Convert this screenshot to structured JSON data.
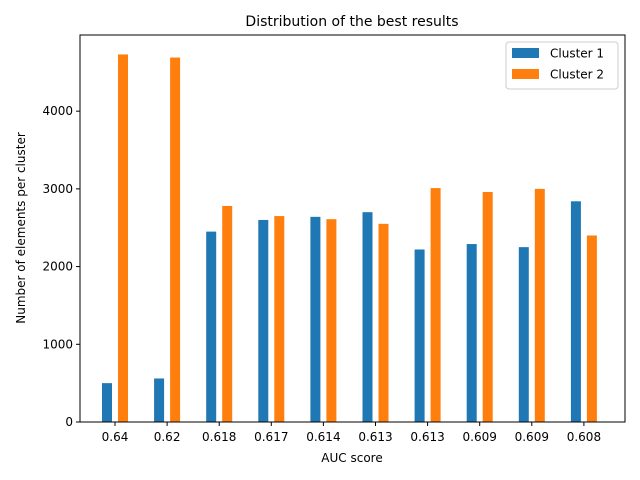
{
  "chart_data": {
    "type": "bar",
    "title": "Distribution of the best results",
    "xlabel": "AUC score",
    "ylabel": "Number of elements per cluster",
    "categories": [
      "0.64",
      "0.62",
      "0.618",
      "0.617",
      "0.614",
      "0.613",
      "0.613",
      "0.609",
      "0.609",
      "0.608"
    ],
    "series": [
      {
        "name": "Cluster 1",
        "color": "#1f77b4",
        "values": [
          500,
          560,
          2450,
          2600,
          2640,
          2700,
          2220,
          2290,
          2250,
          2840
        ]
      },
      {
        "name": "Cluster 2",
        "color": "#ff7f0e",
        "values": [
          4730,
          4690,
          2780,
          2650,
          2610,
          2550,
          3010,
          2960,
          3000,
          2400
        ]
      }
    ],
    "ylim": [
      0,
      4980
    ],
    "yticks": [
      0,
      1000,
      2000,
      3000,
      4000
    ],
    "legend_position": "top-right",
    "grid": false
  }
}
